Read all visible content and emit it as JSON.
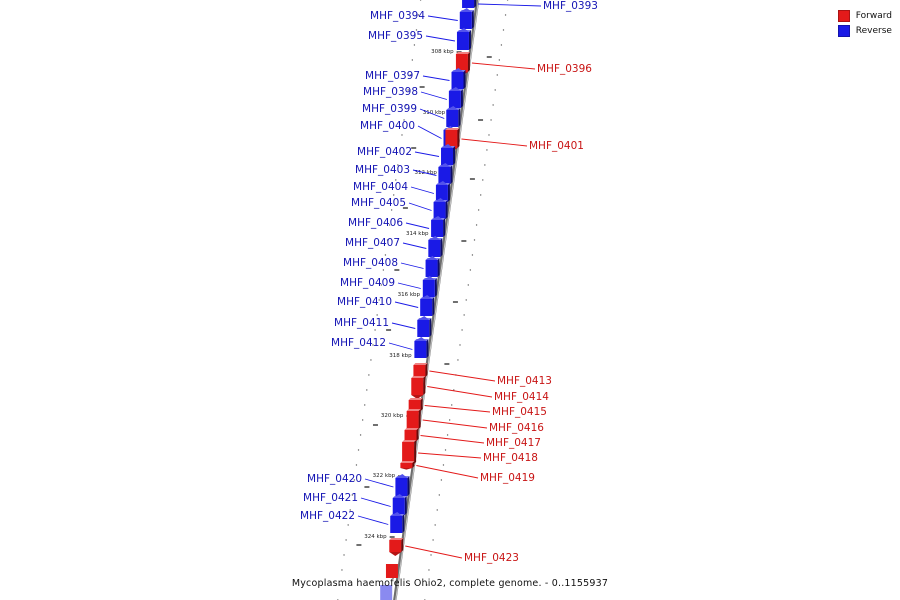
{
  "colors": {
    "forward": "#e31a1a",
    "reverse": "#1a1ae6",
    "axis": "#555555"
  },
  "legend": [
    {
      "label": "Forward",
      "color": "#e31a1a"
    },
    {
      "label": "Reverse",
      "color": "#1a1ae6"
    }
  ],
  "caption": "Mycoplasma haemofelis Ohio2, complete genome. - 0..1155937",
  "ruler": {
    "ticks": [
      "308 kbp",
      "310 kbp",
      "312 kbp",
      "314 kbp",
      "316 kbp",
      "318 kbp",
      "320 kbp",
      "322 kbp",
      "324 kbp"
    ]
  },
  "genes": [
    {
      "name": "MHF_0393",
      "strand": "reverse",
      "label_side": "right"
    },
    {
      "name": "MHF_0394",
      "strand": "reverse",
      "label_side": "left"
    },
    {
      "name": "MHF_0395",
      "strand": "reverse",
      "label_side": "left"
    },
    {
      "name": "MHF_0396",
      "strand": "forward",
      "label_side": "right"
    },
    {
      "name": "MHF_0397",
      "strand": "reverse",
      "label_side": "left"
    },
    {
      "name": "MHF_0398",
      "strand": "reverse",
      "label_side": "left"
    },
    {
      "name": "MHF_0399",
      "strand": "reverse",
      "label_side": "left"
    },
    {
      "name": "MHF_0400",
      "strand": "reverse",
      "label_side": "left"
    },
    {
      "name": "MHF_0401",
      "strand": "forward",
      "label_side": "right"
    },
    {
      "name": "MHF_0402",
      "strand": "reverse",
      "label_side": "left"
    },
    {
      "name": "MHF_0403",
      "strand": "reverse",
      "label_side": "left"
    },
    {
      "name": "MHF_0404",
      "strand": "reverse",
      "label_side": "left"
    },
    {
      "name": "MHF_0405",
      "strand": "reverse",
      "label_side": "left"
    },
    {
      "name": "MHF_0406",
      "strand": "reverse",
      "label_side": "left"
    },
    {
      "name": "MHF_0407",
      "strand": "reverse",
      "label_side": "left"
    },
    {
      "name": "MHF_0408",
      "strand": "reverse",
      "label_side": "left"
    },
    {
      "name": "MHF_0409",
      "strand": "reverse",
      "label_side": "left"
    },
    {
      "name": "MHF_0410",
      "strand": "reverse",
      "label_side": "left"
    },
    {
      "name": "MHF_0411",
      "strand": "reverse",
      "label_side": "left"
    },
    {
      "name": "MHF_0412",
      "strand": "reverse",
      "label_side": "left"
    },
    {
      "name": "MHF_0413",
      "strand": "forward",
      "label_side": "right"
    },
    {
      "name": "MHF_0414",
      "strand": "forward",
      "label_side": "right"
    },
    {
      "name": "MHF_0415",
      "strand": "forward",
      "label_side": "right"
    },
    {
      "name": "MHF_0416",
      "strand": "forward",
      "label_side": "right"
    },
    {
      "name": "MHF_0417",
      "strand": "forward",
      "label_side": "right"
    },
    {
      "name": "MHF_0418",
      "strand": "forward",
      "label_side": "right"
    },
    {
      "name": "MHF_0419",
      "strand": "forward",
      "label_side": "right"
    },
    {
      "name": "MHF_0420",
      "strand": "reverse",
      "label_side": "left"
    },
    {
      "name": "MHF_0421",
      "strand": "reverse",
      "label_side": "left"
    },
    {
      "name": "MHF_0422",
      "strand": "reverse",
      "label_side": "left"
    },
    {
      "name": "MHF_0423",
      "strand": "forward",
      "label_side": "right"
    }
  ]
}
